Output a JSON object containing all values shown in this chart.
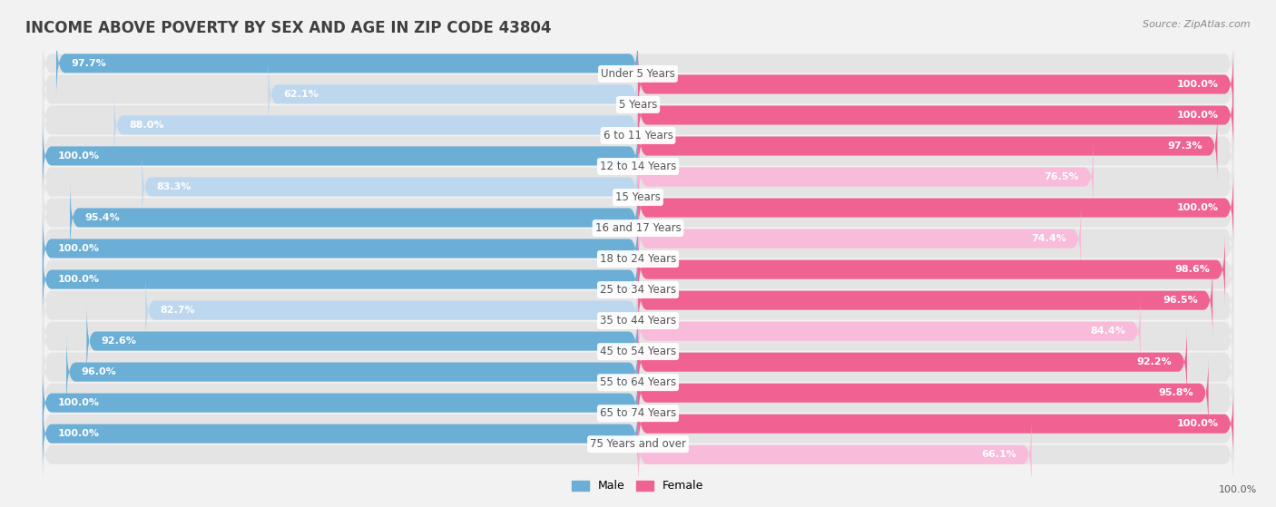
{
  "title": "INCOME ABOVE POVERTY BY SEX AND AGE IN ZIP CODE 43804",
  "source": "Source: ZipAtlas.com",
  "categories": [
    "Under 5 Years",
    "5 Years",
    "6 to 11 Years",
    "12 to 14 Years",
    "15 Years",
    "16 and 17 Years",
    "18 to 24 Years",
    "25 to 34 Years",
    "35 to 44 Years",
    "45 to 54 Years",
    "55 to 64 Years",
    "65 to 74 Years",
    "75 Years and over"
  ],
  "male_values": [
    97.7,
    62.1,
    88.0,
    100.0,
    83.3,
    95.4,
    100.0,
    100.0,
    82.7,
    92.6,
    96.0,
    100.0,
    100.0
  ],
  "female_values": [
    100.0,
    100.0,
    97.3,
    76.5,
    100.0,
    74.4,
    98.6,
    96.5,
    84.4,
    92.2,
    95.8,
    100.0,
    66.1
  ],
  "male_color_hi": "#6BAED6",
  "male_color_lo": "#BDD7EE",
  "female_color_hi": "#F06292",
  "female_color_lo": "#F8BBD9",
  "bg_color": "#F2F2F2",
  "row_bg_color": "#E4E4E4",
  "title_color": "#404040",
  "source_color": "#888888",
  "label_color": "#555555",
  "value_color": "#FFFFFF",
  "title_fontsize": 12,
  "label_fontsize": 8.5,
  "value_fontsize": 8,
  "source_fontsize": 8,
  "legend_fontsize": 9,
  "male_threshold": 90,
  "female_threshold": 90
}
